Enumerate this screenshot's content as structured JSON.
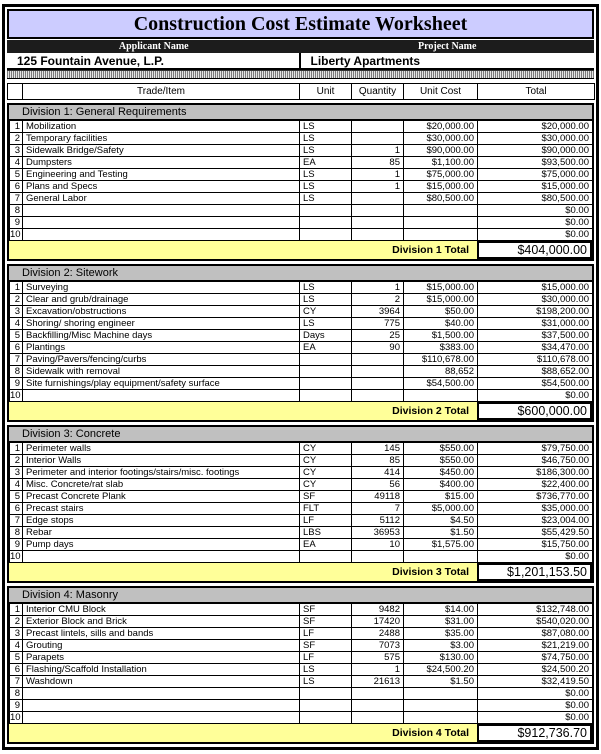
{
  "page_title": "Construction Cost Estimate Worksheet",
  "header": {
    "applicant_label": "Applicant Name",
    "project_label": "Project Name",
    "applicant_value": "125 Fountain Avenue, L.P.",
    "project_value": "Liberty Apartments"
  },
  "columns": {
    "num": "",
    "trade": "Trade/Item",
    "unit": "Unit",
    "qty": "Quantity",
    "cost": "Unit Cost",
    "total": "Total"
  },
  "colors": {
    "title_bg": "#ccccff",
    "band_bg": "#1c1c1c",
    "division_bg": "#c0c0c0",
    "total_bg": "#ffff99",
    "border": "#000000"
  },
  "divisions": [
    {
      "name": "Division 1: General Requirements",
      "total_label": "Division 1 Total",
      "total": "$404,000.00",
      "rows": [
        {
          "num": "1",
          "trade": "Mobilization",
          "unit": "LS",
          "qty": "",
          "cost": "$20,000.00",
          "total": "$20,000.00"
        },
        {
          "num": "2",
          "trade": "Temporary facilities",
          "unit": "LS",
          "qty": "",
          "cost": "$30,000.00",
          "total": "$30,000.00"
        },
        {
          "num": "3",
          "trade": "Sidewalk Bridge/Safety",
          "unit": "LS",
          "qty": "1",
          "cost": "$90,000.00",
          "total": "$90,000.00"
        },
        {
          "num": "4",
          "trade": "Dumpsters",
          "unit": "EA",
          "qty": "85",
          "cost": "$1,100.00",
          "total": "$93,500.00"
        },
        {
          "num": "5",
          "trade": "Engineering and Testing",
          "unit": "LS",
          "qty": "1",
          "cost": "$75,000.00",
          "total": "$75,000.00"
        },
        {
          "num": "6",
          "trade": "Plans and Specs",
          "unit": "LS",
          "qty": "1",
          "cost": "$15,000.00",
          "total": "$15,000.00"
        },
        {
          "num": "7",
          "trade": "General Labor",
          "unit": "LS",
          "qty": "",
          "cost": "$80,500.00",
          "total": "$80,500.00"
        },
        {
          "num": "8",
          "trade": "",
          "unit": "",
          "qty": "",
          "cost": "",
          "total": "$0.00"
        },
        {
          "num": "9",
          "trade": "",
          "unit": "",
          "qty": "",
          "cost": "",
          "total": "$0.00"
        },
        {
          "num": "10",
          "trade": "",
          "unit": "",
          "qty": "",
          "cost": "",
          "total": "$0.00"
        }
      ]
    },
    {
      "name": "Division 2: Sitework",
      "total_label": "Division 2 Total",
      "total": "$600,000.00",
      "rows": [
        {
          "num": "1",
          "trade": "Surveying",
          "unit": "LS",
          "qty": "1",
          "cost": "$15,000.00",
          "total": "$15,000.00"
        },
        {
          "num": "2",
          "trade": "Clear and grub/drainage",
          "unit": "LS",
          "qty": "2",
          "cost": "$15,000.00",
          "total": "$30,000.00"
        },
        {
          "num": "3",
          "trade": "Excavation/obstructions",
          "unit": "CY",
          "qty": "3964",
          "cost": "$50.00",
          "total": "$198,200.00"
        },
        {
          "num": "4",
          "trade": "Shoring/ shoring engineer",
          "unit": "LS",
          "qty": "775",
          "cost": "$40.00",
          "total": "$31,000.00"
        },
        {
          "num": "5",
          "trade": "Backfilling/Misc Machine days",
          "unit": "Days",
          "qty": "25",
          "cost": "$1,500.00",
          "total": "$37,500.00"
        },
        {
          "num": "6",
          "trade": "Plantings",
          "unit": "EA",
          "qty": "90",
          "cost": "$383.00",
          "total": "$34,470.00"
        },
        {
          "num": "7",
          "trade": "Paving/Pavers/fencing/curbs",
          "unit": "",
          "qty": "",
          "cost": "$110,678.00",
          "total": "$110,678.00"
        },
        {
          "num": "8",
          "trade": "Sidewalk with removal",
          "unit": "",
          "qty": "",
          "cost": "88,652",
          "total": "$88,652.00"
        },
        {
          "num": "9",
          "trade": "Site furnishings/play equipment/safety surface",
          "unit": "",
          "qty": "",
          "cost": "$54,500.00",
          "total": "$54,500.00"
        },
        {
          "num": "10",
          "trade": "",
          "unit": "",
          "qty": "",
          "cost": "",
          "total": "$0.00"
        }
      ]
    },
    {
      "name": "Division 3: Concrete",
      "total_label": "Division 3 Total",
      "total": "$1,201,153.50",
      "rows": [
        {
          "num": "1",
          "trade": "Perimeter walls",
          "unit": "CY",
          "qty": "145",
          "cost": "$550.00",
          "total": "$79,750.00"
        },
        {
          "num": "2",
          "trade": "Interior Walls",
          "unit": "CY",
          "qty": "85",
          "cost": "$550.00",
          "total": "$46,750.00"
        },
        {
          "num": "3",
          "trade": "Perimeter and interior footings/stairs/misc. footings",
          "unit": "CY",
          "qty": "414",
          "cost": "$450.00",
          "total": "$186,300.00"
        },
        {
          "num": "4",
          "trade": "Misc. Concrete/rat slab",
          "unit": "CY",
          "qty": "56",
          "cost": "$400.00",
          "total": "$22,400.00"
        },
        {
          "num": "5",
          "trade": "Precast Concrete Plank",
          "unit": "SF",
          "qty": "49118",
          "cost": "$15.00",
          "total": "$736,770.00"
        },
        {
          "num": "6",
          "trade": "Precast stairs",
          "unit": "FLT",
          "qty": "7",
          "cost": "$5,000.00",
          "total": "$35,000.00"
        },
        {
          "num": "7",
          "trade": "Edge stops",
          "unit": "LF",
          "qty": "5112",
          "cost": "$4.50",
          "total": "$23,004.00"
        },
        {
          "num": "8",
          "trade": "Rebar",
          "unit": "LBS",
          "qty": "36953",
          "cost": "$1.50",
          "total": "$55,429.50"
        },
        {
          "num": "9",
          "trade": "Pump days",
          "unit": "EA",
          "qty": "10",
          "cost": "$1,575.00",
          "total": "$15,750.00"
        },
        {
          "num": "10",
          "trade": "",
          "unit": "",
          "qty": "",
          "cost": "",
          "total": "$0.00"
        }
      ]
    },
    {
      "name": "Division 4: Masonry",
      "total_label": "Division 4 Total",
      "total": "$912,736.70",
      "rows": [
        {
          "num": "1",
          "trade": "Interior CMU Block",
          "unit": "SF",
          "qty": "9482",
          "cost": "$14.00",
          "total": "$132,748.00"
        },
        {
          "num": "2",
          "trade": "Exterior Block and Brick",
          "unit": "SF",
          "qty": "17420",
          "cost": "$31.00",
          "total": "$540,020.00"
        },
        {
          "num": "3",
          "trade": "Precast lintels, sills and bands",
          "unit": "LF",
          "qty": "2488",
          "cost": "$35.00",
          "total": "$87,080.00"
        },
        {
          "num": "4",
          "trade": "Grouting",
          "unit": "SF",
          "qty": "7073",
          "cost": "$3.00",
          "total": "$21,219.00"
        },
        {
          "num": "5",
          "trade": "Parapets",
          "unit": "LF",
          "qty": "575",
          "cost": "$130.00",
          "total": "$74,750.00"
        },
        {
          "num": "6",
          "trade": "Flashing/Scaffold Installation",
          "unit": "LS",
          "qty": "1",
          "cost": "$24,500.20",
          "total": "$24,500.20"
        },
        {
          "num": "7",
          "trade": "Washdown",
          "unit": "LS",
          "qty": "21613",
          "cost": "$1.50",
          "total": "$32,419.50"
        },
        {
          "num": "8",
          "trade": "",
          "unit": "",
          "qty": "",
          "cost": "",
          "total": "$0.00"
        },
        {
          "num": "9",
          "trade": "",
          "unit": "",
          "qty": "",
          "cost": "",
          "total": "$0.00"
        },
        {
          "num": "10",
          "trade": "",
          "unit": "",
          "qty": "",
          "cost": "",
          "total": "$0.00"
        }
      ]
    }
  ]
}
